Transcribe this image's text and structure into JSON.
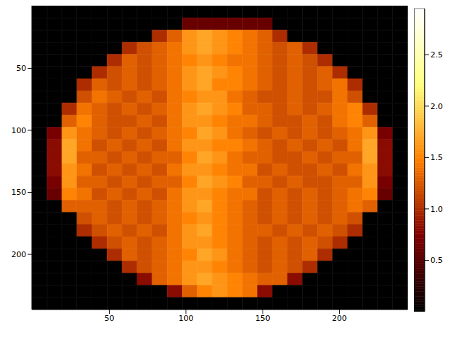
{
  "chart_data": {
    "type": "heatmap",
    "xlim": [
      -0.5,
      244.5
    ],
    "ylim": [
      244.5,
      -0.5
    ],
    "xticks": [
      50,
      100,
      150,
      200
    ],
    "yticks": [
      50,
      100,
      150,
      200
    ],
    "cells": [
      [
        0,
        0,
        0,
        0,
        0,
        0,
        0,
        0,
        0,
        0,
        0,
        0,
        0,
        0,
        0,
        0,
        0,
        0,
        0,
        0,
        0,
        0,
        0,
        0,
        0
      ],
      [
        0,
        0,
        0,
        0,
        0,
        0,
        0,
        0,
        0,
        0,
        0.6,
        0.6,
        0.6,
        0.6,
        0.6,
        0.6,
        0,
        0,
        0,
        0,
        0,
        0,
        0,
        0,
        0
      ],
      [
        0,
        0,
        0,
        0,
        0,
        0,
        0,
        0,
        1.0,
        1.3,
        1.6,
        1.7,
        1.6,
        1.5,
        1.4,
        1.3,
        1.0,
        0,
        0,
        0,
        0,
        0,
        0,
        0,
        0
      ],
      [
        0,
        0,
        0,
        0,
        0,
        0,
        1.0,
        1.2,
        1.3,
        1.4,
        1.6,
        1.7,
        1.6,
        1.5,
        1.4,
        1.3,
        1.2,
        1.3,
        1.0,
        0,
        0,
        0,
        0,
        0,
        0
      ],
      [
        0,
        0,
        0,
        0,
        0,
        1.0,
        1.3,
        1.2,
        1.3,
        1.4,
        1.5,
        1.6,
        1.5,
        1.4,
        1.4,
        1.3,
        1.2,
        1.3,
        1.2,
        1.0,
        0,
        0,
        0,
        0,
        0
      ],
      [
        0,
        0,
        0,
        0,
        1.0,
        1.2,
        1.3,
        1.2,
        1.3,
        1.4,
        1.6,
        1.7,
        1.6,
        1.5,
        1.4,
        1.3,
        1.2,
        1.3,
        1.2,
        1.3,
        1.0,
        0,
        0,
        0,
        0
      ],
      [
        0,
        0,
        0,
        1.0,
        1.3,
        1.2,
        1.3,
        1.2,
        1.3,
        1.4,
        1.6,
        1.7,
        1.5,
        1.5,
        1.4,
        1.3,
        1.2,
        1.3,
        1.2,
        1.3,
        1.4,
        1.0,
        0,
        0,
        0
      ],
      [
        0,
        0,
        0,
        1.2,
        1.4,
        1.3,
        1.2,
        1.3,
        1.2,
        1.4,
        1.5,
        1.6,
        1.6,
        1.4,
        1.3,
        1.2,
        1.2,
        1.3,
        1.2,
        1.2,
        1.4,
        1.2,
        0,
        0,
        0
      ],
      [
        0,
        0,
        1.0,
        1.4,
        1.3,
        1.2,
        1.3,
        1.2,
        1.3,
        1.4,
        1.6,
        1.7,
        1.6,
        1.5,
        1.3,
        1.3,
        1.2,
        1.3,
        1.2,
        1.3,
        1.4,
        1.5,
        1.0,
        0,
        0
      ],
      [
        0,
        0,
        1.3,
        1.5,
        1.3,
        1.2,
        1.2,
        1.3,
        1.2,
        1.4,
        1.6,
        1.6,
        1.5,
        1.4,
        1.4,
        1.3,
        1.2,
        1.2,
        1.3,
        1.2,
        1.4,
        1.5,
        1.3,
        0,
        0
      ],
      [
        0,
        0.7,
        1.6,
        1.4,
        1.3,
        1.2,
        1.3,
        1.2,
        1.3,
        1.4,
        1.5,
        1.7,
        1.6,
        1.4,
        1.3,
        1.2,
        1.3,
        1.2,
        1.3,
        1.2,
        1.3,
        1.4,
        1.6,
        0.7,
        0
      ],
      [
        0,
        0.8,
        1.7,
        1.4,
        1.2,
        1.3,
        1.2,
        1.3,
        1.2,
        1.4,
        1.6,
        1.6,
        1.5,
        1.5,
        1.4,
        1.3,
        1.2,
        1.3,
        1.2,
        1.3,
        1.2,
        1.4,
        1.7,
        0.8,
        0
      ],
      [
        0,
        0.8,
        1.7,
        1.3,
        1.3,
        1.2,
        1.3,
        1.2,
        1.3,
        1.3,
        1.5,
        1.7,
        1.6,
        1.4,
        1.3,
        1.3,
        1.2,
        1.2,
        1.3,
        1.2,
        1.3,
        1.3,
        1.7,
        0.8,
        0
      ],
      [
        0,
        0.8,
        1.6,
        1.4,
        1.2,
        1.3,
        1.2,
        1.3,
        1.2,
        1.4,
        1.6,
        1.6,
        1.5,
        1.4,
        1.4,
        1.2,
        1.3,
        1.2,
        1.2,
        1.3,
        1.2,
        1.4,
        1.6,
        0.8,
        0
      ],
      [
        0,
        0.7,
        1.6,
        1.3,
        1.3,
        1.2,
        1.3,
        1.2,
        1.3,
        1.3,
        1.5,
        1.7,
        1.6,
        1.5,
        1.3,
        1.3,
        1.2,
        1.3,
        1.2,
        1.2,
        1.3,
        1.3,
        1.6,
        0.7,
        0
      ],
      [
        0,
        0.6,
        1.5,
        1.4,
        1.2,
        1.3,
        1.2,
        1.3,
        1.2,
        1.4,
        1.6,
        1.6,
        1.5,
        1.4,
        1.4,
        1.2,
        1.3,
        1.2,
        1.3,
        1.2,
        1.3,
        1.4,
        1.5,
        0.6,
        0
      ],
      [
        0,
        0,
        1.3,
        1.3,
        1.3,
        1.2,
        1.3,
        1.2,
        1.3,
        1.4,
        1.6,
        1.7,
        1.5,
        1.4,
        1.3,
        1.2,
        1.3,
        1.2,
        1.3,
        1.2,
        1.3,
        1.4,
        1.3,
        0,
        0
      ],
      [
        0,
        0,
        0,
        1.2,
        1.3,
        1.2,
        1.3,
        1.2,
        1.3,
        1.4,
        1.5,
        1.6,
        1.5,
        1.4,
        1.3,
        1.2,
        1.3,
        1.2,
        1.3,
        1.2,
        1.3,
        1.2,
        0,
        0,
        0
      ],
      [
        0,
        0,
        0,
        1.0,
        1.2,
        1.3,
        1.2,
        1.3,
        1.2,
        1.4,
        1.6,
        1.7,
        1.5,
        1.4,
        1.3,
        1.3,
        1.2,
        1.3,
        1.2,
        1.3,
        1.2,
        1.0,
        0,
        0,
        0
      ],
      [
        0,
        0,
        0,
        0,
        1.0,
        1.2,
        1.3,
        1.2,
        1.3,
        1.4,
        1.6,
        1.6,
        1.5,
        1.4,
        1.3,
        1.2,
        1.3,
        1.2,
        1.3,
        1.2,
        1.0,
        0,
        0,
        0,
        0
      ],
      [
        0,
        0,
        0,
        0,
        0,
        1.0,
        1.3,
        1.2,
        1.3,
        1.4,
        1.5,
        1.7,
        1.6,
        1.4,
        1.3,
        1.2,
        1.3,
        1.2,
        1.3,
        1.0,
        0,
        0,
        0,
        0,
        0
      ],
      [
        0,
        0,
        0,
        0,
        0,
        0,
        1.0,
        1.2,
        1.3,
        1.4,
        1.6,
        1.6,
        1.5,
        1.4,
        1.3,
        1.2,
        1.3,
        1.2,
        1.0,
        0,
        0,
        0,
        0,
        0,
        0
      ],
      [
        0,
        0,
        0,
        0,
        0,
        0,
        0,
        0.8,
        1.3,
        1.4,
        1.6,
        1.7,
        1.6,
        1.5,
        1.4,
        1.3,
        1.3,
        0.8,
        0,
        0,
        0,
        0,
        0,
        0,
        0
      ],
      [
        0,
        0,
        0,
        0,
        0,
        0,
        0,
        0,
        0,
        0.8,
        1.3,
        1.5,
        1.6,
        1.5,
        1.4,
        0.8,
        0,
        0,
        0,
        0,
        0,
        0,
        0,
        0,
        0
      ],
      [
        0,
        0,
        0,
        0,
        0,
        0,
        0,
        0,
        0,
        0,
        0,
        0,
        0,
        0,
        0,
        0,
        0,
        0,
        0,
        0,
        0,
        0,
        0,
        0,
        0
      ]
    ],
    "colorbar": {
      "range": [
        0,
        2.95
      ],
      "ticks": [
        0.5,
        {
          "value": 1,
          "label": "1.0"
        },
        1.5,
        {
          "value": 2,
          "label": "2.0"
        },
        2.5
      ]
    }
  }
}
